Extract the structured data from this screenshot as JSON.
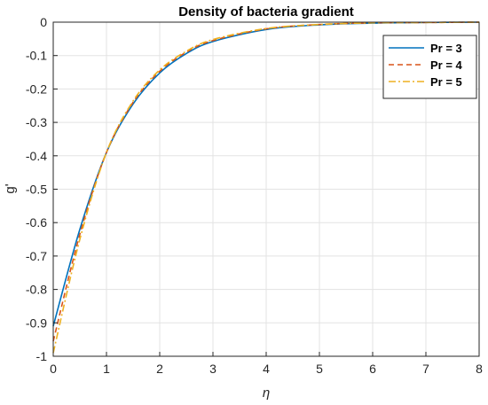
{
  "chart_data": {
    "type": "line",
    "title": "Density of bacteria gradient",
    "xlabel": "η",
    "ylabel": "g'",
    "xlim": [
      0,
      8
    ],
    "ylim": [
      -1,
      0
    ],
    "xticks": [
      "0",
      "1",
      "2",
      "3",
      "4",
      "5",
      "6",
      "7",
      "8"
    ],
    "yticks": [
      "0",
      "-0.1",
      "-0.2",
      "-0.3",
      "-0.4",
      "-0.5",
      "-0.6",
      "-0.7",
      "-0.8",
      "-0.9",
      "-1"
    ],
    "grid": true,
    "legend_position": "top-right",
    "x": [
      0,
      0.5,
      1,
      1.5,
      2,
      2.5,
      3,
      4,
      5,
      6,
      7,
      8
    ],
    "series": [
      {
        "name": "Pr = 3",
        "color": "#0072BD",
        "dash": "solid",
        "values": [
          -0.91,
          -0.62,
          -0.39,
          -0.245,
          -0.152,
          -0.094,
          -0.058,
          -0.022,
          -0.008,
          -0.003,
          -0.001,
          0
        ]
      },
      {
        "name": "Pr = 4",
        "color": "#D95319",
        "dash": "dashed",
        "values": [
          -0.955,
          -0.635,
          -0.39,
          -0.24,
          -0.147,
          -0.09,
          -0.055,
          -0.02,
          -0.007,
          -0.002,
          -0.001,
          0
        ]
      },
      {
        "name": "Pr = 5",
        "color": "#EDB120",
        "dash": "dashdot",
        "values": [
          -0.99,
          -0.65,
          -0.39,
          -0.236,
          -0.143,
          -0.087,
          -0.052,
          -0.019,
          -0.007,
          -0.002,
          -0.001,
          0
        ]
      }
    ]
  }
}
